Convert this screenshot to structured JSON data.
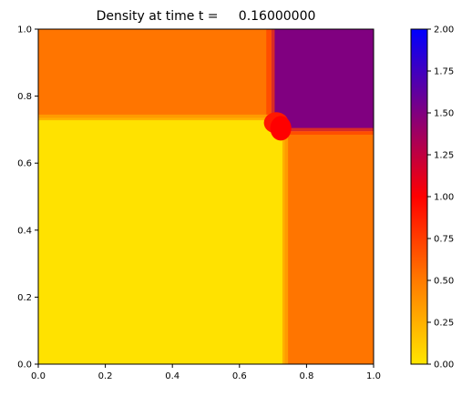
{
  "chart_data": {
    "type": "heatmap",
    "title": "Density at time t =     0.16000000",
    "xlabel": "",
    "ylabel": "",
    "xlim": [
      0,
      1
    ],
    "ylim": [
      0,
      1
    ],
    "x_ticks": [
      "0.0",
      "0.2",
      "0.4",
      "0.6",
      "0.8",
      "1.0"
    ],
    "y_ticks": [
      "0.0",
      "0.2",
      "0.4",
      "0.6",
      "0.8",
      "1.0"
    ],
    "grid": false,
    "colorbar": {
      "range": [
        0,
        2
      ],
      "ticks": [
        "0.00",
        "0.25",
        "0.50",
        "0.75",
        "1.00",
        "1.25",
        "1.50",
        "1.75",
        "2.00"
      ],
      "tick_values": [
        0,
        0.25,
        0.5,
        0.75,
        1.0,
        1.25,
        1.5,
        1.75,
        2.0
      ],
      "stops": [
        {
          "value": 0.0,
          "color": "#ffe600"
        },
        {
          "value": 0.5,
          "color": "#ff7a00"
        },
        {
          "value": 1.0,
          "color": "#ff0000"
        },
        {
          "value": 1.5,
          "color": "#800080"
        },
        {
          "value": 2.0,
          "color": "#0000ff"
        }
      ]
    },
    "regions": [
      {
        "name": "lower-left",
        "x": [
          0.0,
          0.735
        ],
        "y": [
          0.0,
          0.735
        ],
        "value": 0.02
      },
      {
        "name": "upper-left",
        "x": [
          0.0,
          0.695
        ],
        "y": [
          0.735,
          1.0
        ],
        "value": 0.52
      },
      {
        "name": "upper-right",
        "x": [
          0.695,
          1.0
        ],
        "y": [
          0.695,
          1.0
        ],
        "value": 1.5
      },
      {
        "name": "lower-right",
        "x": [
          0.735,
          1.0
        ],
        "y": [
          0.0,
          0.695
        ],
        "value": 0.52
      }
    ],
    "features": [
      {
        "name": "shock-blob",
        "x": 0.715,
        "y": 0.715,
        "radius": 0.035,
        "value": 0.9
      }
    ]
  }
}
